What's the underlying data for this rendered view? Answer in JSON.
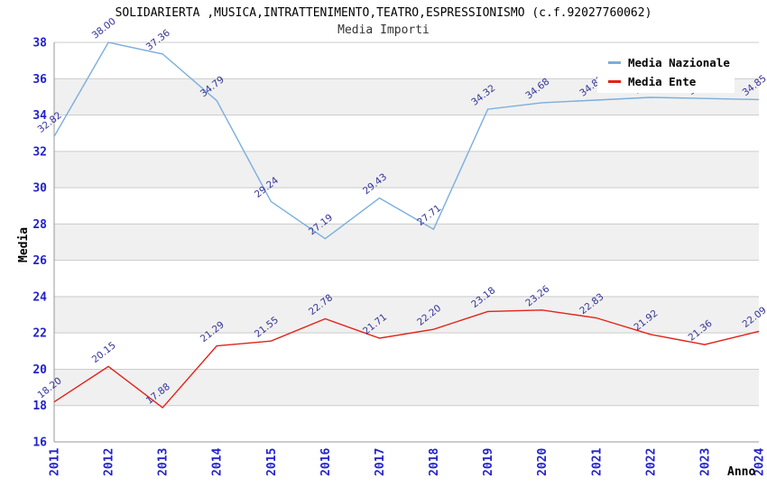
{
  "chart_data": {
    "type": "line",
    "title": "SOLIDARIERTA ,MUSICA,INTRATTENIMENTO,TEATRO,ESPRESSIONISMO (c.f.92027760062)",
    "subtitle": "Media Importi",
    "xlabel": "Anno",
    "ylabel": "Media",
    "categories": [
      "2011",
      "2012",
      "2013",
      "2014",
      "2015",
      "2016",
      "2017",
      "2018",
      "2019",
      "2020",
      "2021",
      "2022",
      "2023",
      "2024"
    ],
    "series": [
      {
        "name": "Media Nazionale",
        "color": "#7AAEDE",
        "values": [
          32.82,
          38.0,
          37.36,
          34.79,
          29.24,
          27.19,
          29.43,
          27.71,
          34.32,
          34.68,
          34.82,
          34.97,
          34.91,
          34.85
        ]
      },
      {
        "name": "Media Ente",
        "color": "#E32219",
        "values": [
          18.2,
          20.15,
          17.88,
          21.29,
          21.55,
          22.78,
          21.71,
          22.2,
          23.18,
          23.26,
          22.83,
          21.92,
          21.36,
          22.09
        ]
      }
    ],
    "ylim": [
      16,
      38
    ],
    "ytick_step": 2,
    "grid": "horizontal",
    "legend_position": "top-right",
    "colors": {
      "band_fill": "#F0F0F0",
      "gridline": "#CCCCCC",
      "axis_line": "#9A9A9A",
      "tick_text": "#2222CC",
      "point_label_text": "#333399",
      "title_text": "#000000"
    }
  }
}
